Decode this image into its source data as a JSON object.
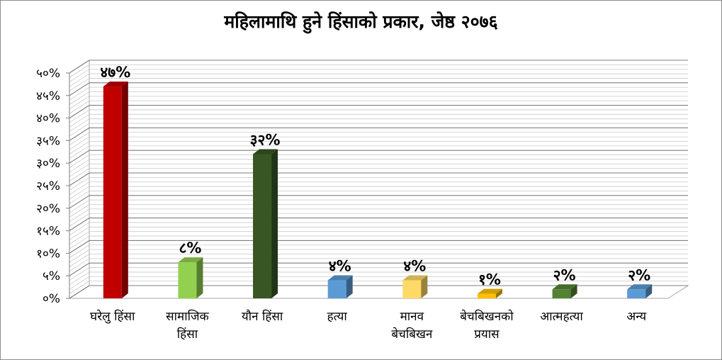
{
  "chart_data": {
    "type": "bar",
    "title": "महिलामाथि हुने हिंसाको प्रकार, जेष्ठ २०७६",
    "categories": [
      [
        "घरेलु हिंसा"
      ],
      [
        "सामाजिक",
        "हिंसा"
      ],
      [
        "यौन हिंसा"
      ],
      [
        "हत्या"
      ],
      [
        "मानव",
        "बेचबिखन"
      ],
      [
        "बेचबिखनको",
        "प्रयास"
      ],
      [
        "आत्महत्या"
      ],
      [
        "अन्य"
      ]
    ],
    "values": [
      47,
      8,
      32,
      4,
      4,
      1,
      2,
      2
    ],
    "data_labels": [
      "४७%",
      "८%",
      "३२%",
      "४%",
      "४%",
      "१%",
      "२%",
      "२%"
    ],
    "colors": [
      "#c00000",
      "#92d050",
      "#375623",
      "#5b9bd5",
      "#ffd966",
      "#ffc000",
      "#548235",
      "#5b9bd5"
    ],
    "ylim": [
      0,
      50
    ],
    "yticks": [
      "०%",
      "५%",
      "१०%",
      "१५%",
      "२०%",
      "२५%",
      "३०%",
      "३५%",
      "४०%",
      "४५%",
      "५०%"
    ],
    "grid": true,
    "style": "3d-column"
  }
}
